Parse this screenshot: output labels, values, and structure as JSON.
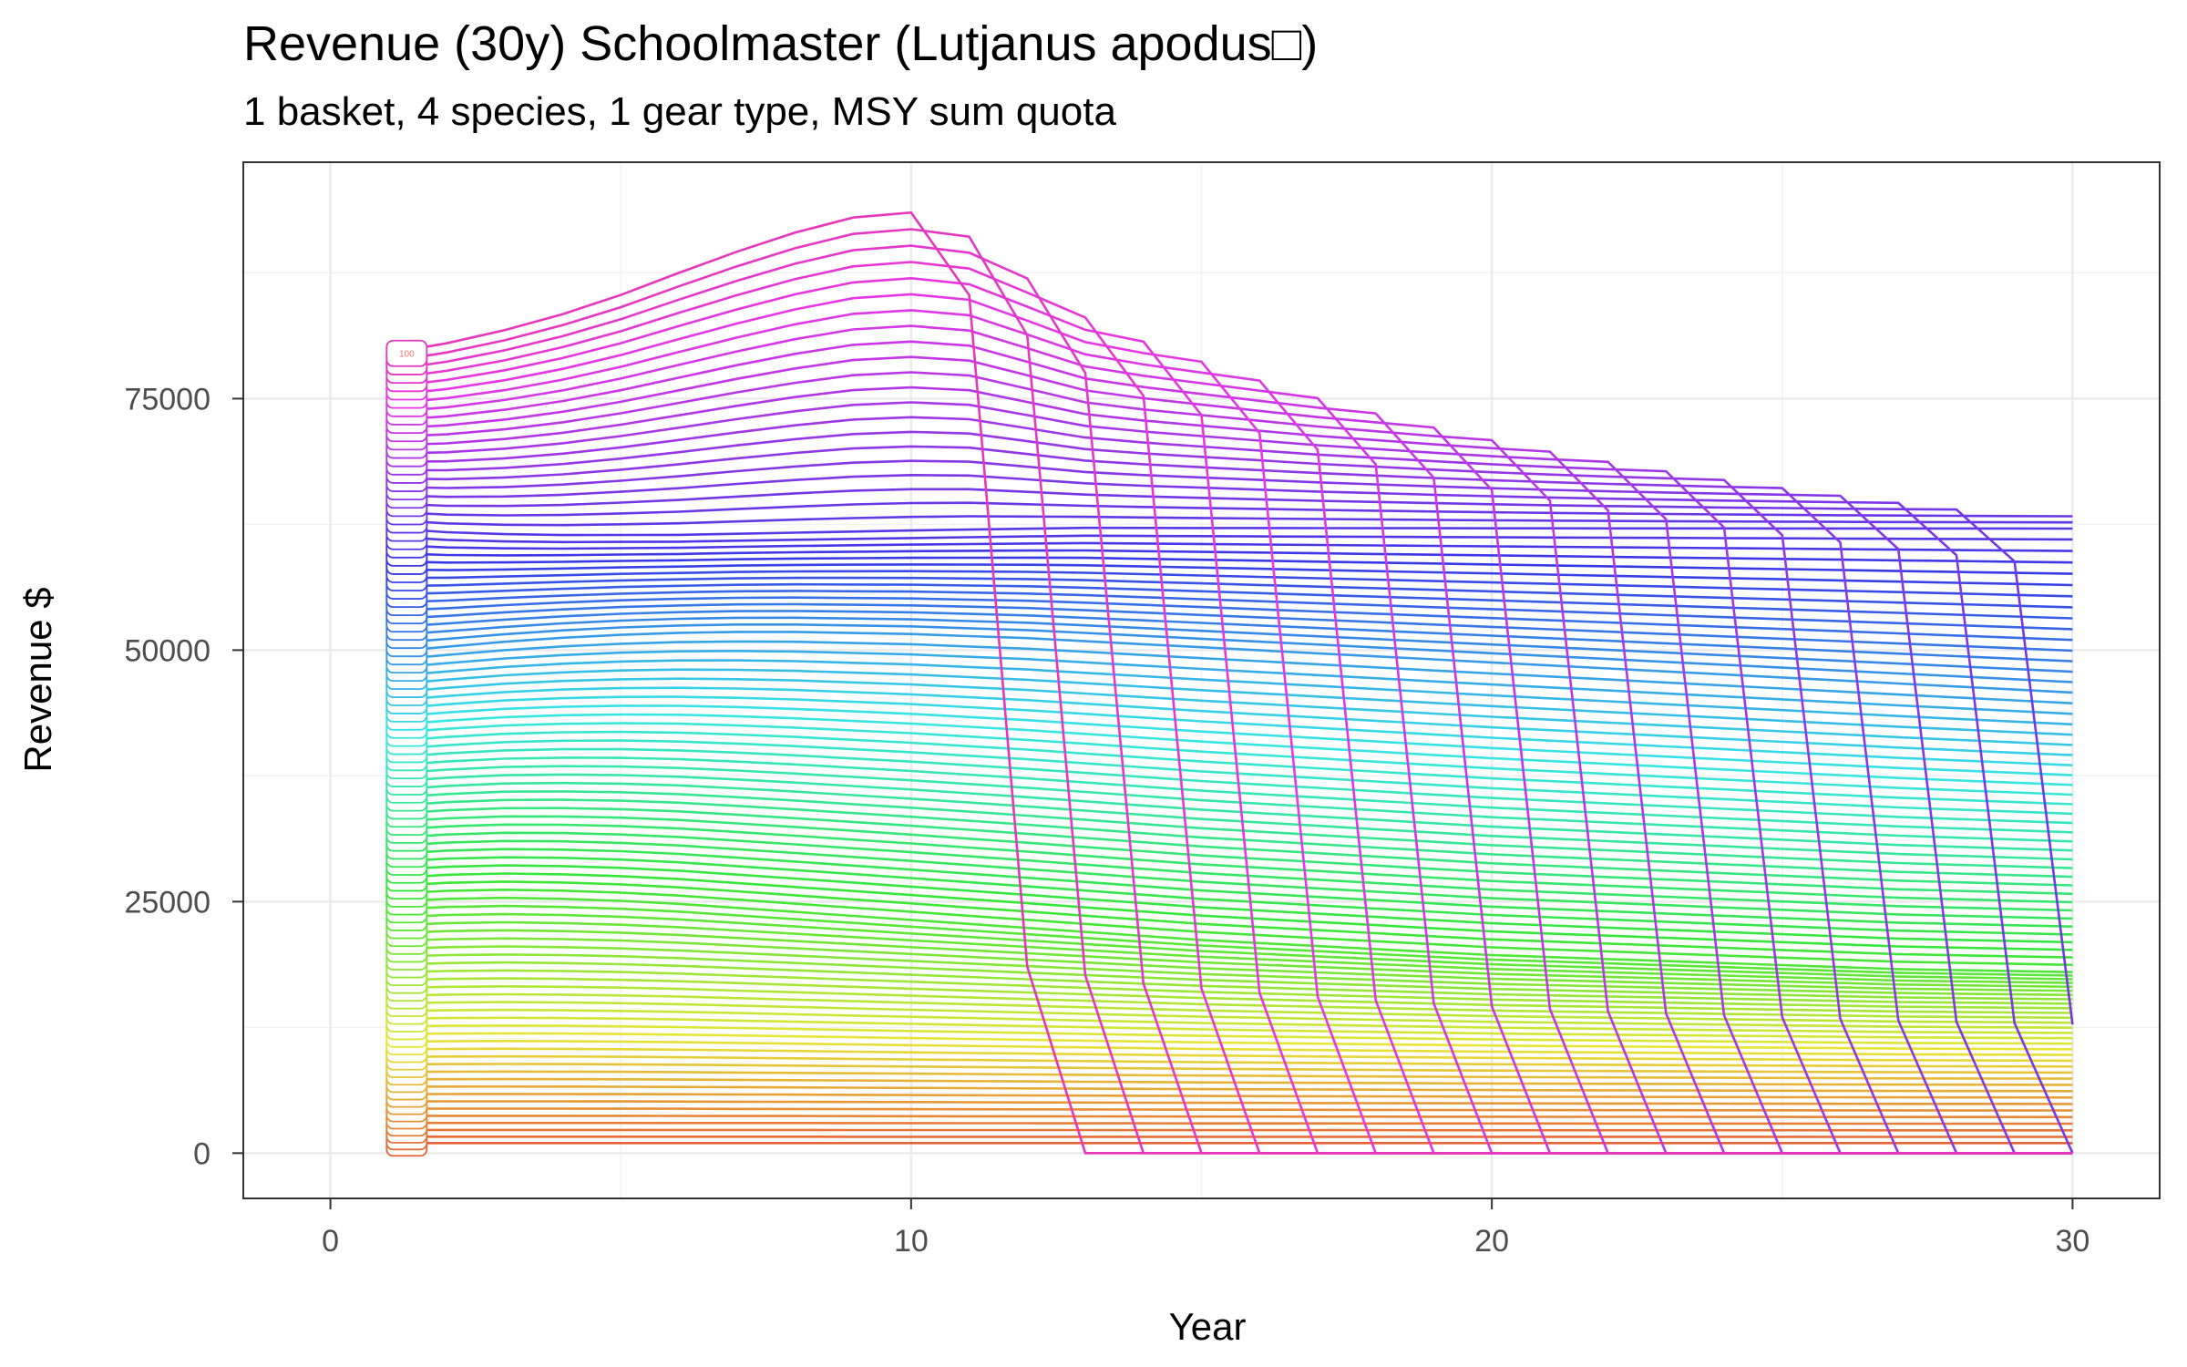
{
  "chart_data": {
    "type": "line",
    "title": "Revenue (30y) Schoolmaster (Lutjanus apodus□)",
    "subtitle": "1 basket, 4 species, 1 gear type, MSY sum quota",
    "xlabel": "Year",
    "ylabel": "Revenue $",
    "xlim": [
      -1.5,
      31.5
    ],
    "ylim": [
      -4500,
      98500
    ],
    "x_ticks": [
      0,
      10,
      20,
      30
    ],
    "x_tick_labels": [
      "0",
      "10",
      "20",
      "30"
    ],
    "y_ticks": [
      0,
      25000,
      50000,
      75000
    ],
    "y_tick_labels": [
      "0",
      "25000",
      "50000",
      "75000"
    ],
    "grid": true,
    "legend": "none",
    "series_count": 100,
    "series_label_visible": "100",
    "x": [
      1,
      2,
      3,
      4,
      5,
      6,
      7,
      8,
      9,
      10,
      11,
      12,
      13,
      14,
      15,
      16,
      17,
      18,
      19,
      20,
      21,
      22,
      23,
      24,
      25,
      26,
      27,
      28,
      29,
      30
    ],
    "reference_series": [
      {
        "start": 79500,
        "values": [
          79500,
          80500,
          81800,
          83400,
          85300,
          87500,
          89600,
          91500,
          93000,
          93500,
          92700,
          89800,
          86800,
          85300,
          84100,
          82900,
          81700,
          80700,
          79700,
          78800,
          78000,
          77300,
          76700,
          76100,
          75600,
          75100,
          74700,
          74400,
          74100,
          73900
        ],
        "collapse_year": 12
      },
      {
        "start": 62000,
        "values": [
          62000,
          61600,
          61400,
          61300,
          61300,
          61300,
          61400,
          61500,
          61600,
          61700,
          61800,
          61900,
          62000,
          62000,
          62000,
          62000,
          62000,
          62000,
          62000,
          62000,
          62000,
          62000,
          62000,
          62000,
          62000,
          62000,
          62000,
          62000,
          62000,
          62000
        ],
        "collapse_year": null
      },
      {
        "start": 50000,
        "values": [
          50000,
          50500,
          51000,
          51400,
          51700,
          51900,
          52000,
          52000,
          51900,
          51800,
          51600,
          51400,
          51100,
          50800,
          50500,
          50200,
          49900,
          49600,
          49300,
          49000,
          48700,
          48400,
          48100,
          47800,
          47500,
          47200,
          46900,
          46600,
          46300,
          46000
        ],
        "collapse_year": null
      },
      {
        "start": 25000,
        "values": [
          25000,
          25300,
          25400,
          25300,
          25100,
          24800,
          24400,
          24000,
          23600,
          23200,
          22800,
          22400,
          22000,
          21600,
          21200,
          20900,
          20600,
          20300,
          20000,
          19700,
          19500,
          19300,
          19100,
          18900,
          18700,
          18500,
          18300,
          18200,
          18100,
          18000
        ],
        "collapse_year": null
      },
      {
        "start": 1000,
        "values": [
          1000,
          1000,
          1000,
          1000,
          1000,
          1000,
          1000,
          1000,
          1000,
          1000,
          1000,
          1000,
          1000,
          1000,
          1000,
          1000,
          1000,
          1000,
          1000,
          1000,
          1000,
          1000,
          1000,
          1000,
          1000,
          1000,
          1000,
          1000,
          1000,
          1000
        ],
        "collapse_year": null
      }
    ],
    "collapse_years": [
      12,
      13,
      14,
      15,
      16,
      17,
      18,
      19,
      20,
      21,
      22,
      23,
      24,
      25,
      26,
      27,
      28,
      29,
      30
    ]
  }
}
